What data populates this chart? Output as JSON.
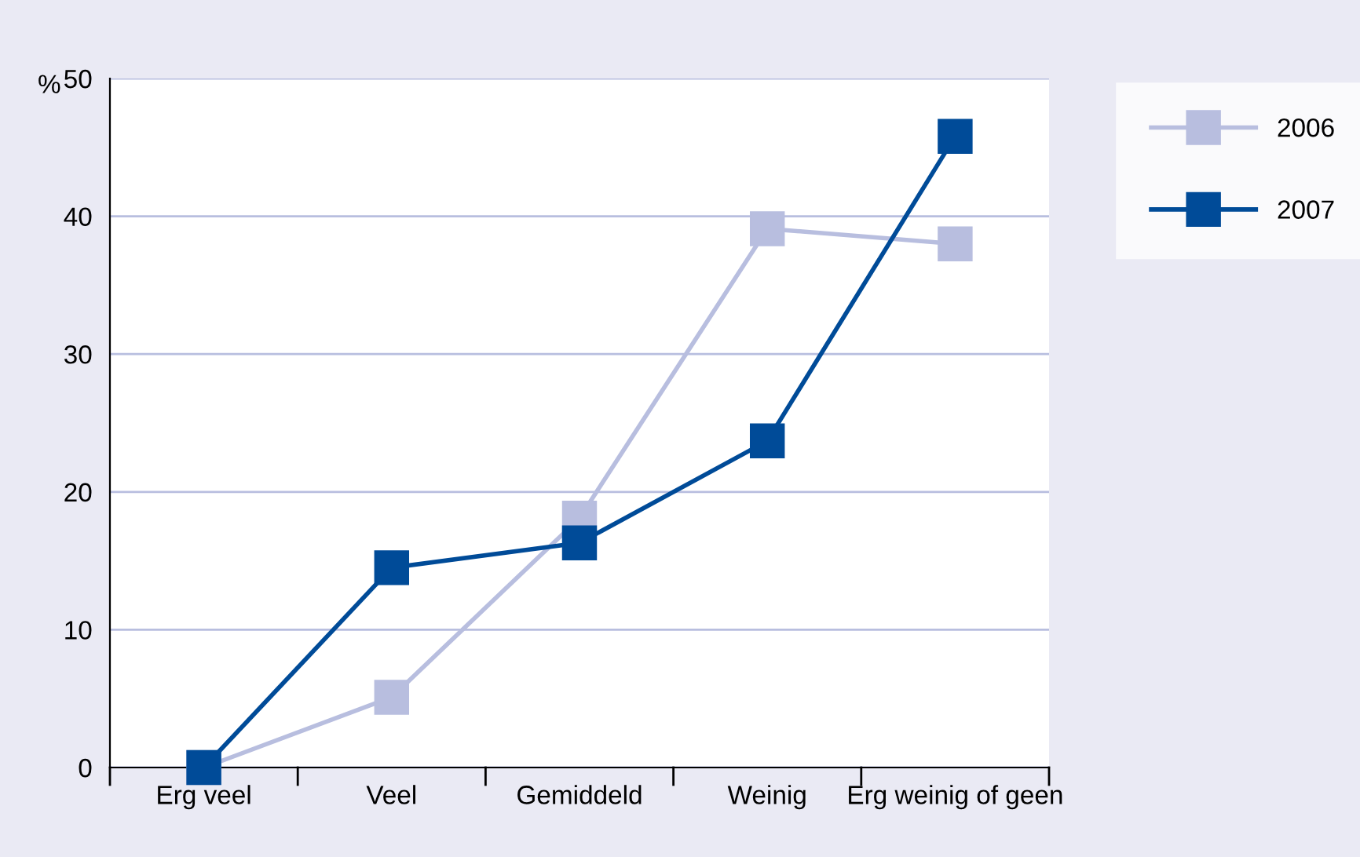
{
  "chart_data": {
    "type": "line",
    "ylabel": "%",
    "categories": [
      "Erg veel",
      "Veel",
      "Gemiddeld",
      "Weinig",
      "Erg weinig of geen"
    ],
    "series": [
      {
        "name": "2006",
        "color": "#b8bedf",
        "values": [
          0,
          5.1,
          18.1,
          39.1,
          38.0
        ]
      },
      {
        "name": "2007",
        "color": "#004b98",
        "values": [
          0,
          14.5,
          16.3,
          23.7,
          45.8
        ]
      }
    ],
    "ylim": [
      0,
      50
    ],
    "yticks": [
      0,
      10,
      20,
      30,
      40,
      50
    ],
    "grid": "y",
    "legend": "top right",
    "marker": "square",
    "line_style": "solid"
  }
}
